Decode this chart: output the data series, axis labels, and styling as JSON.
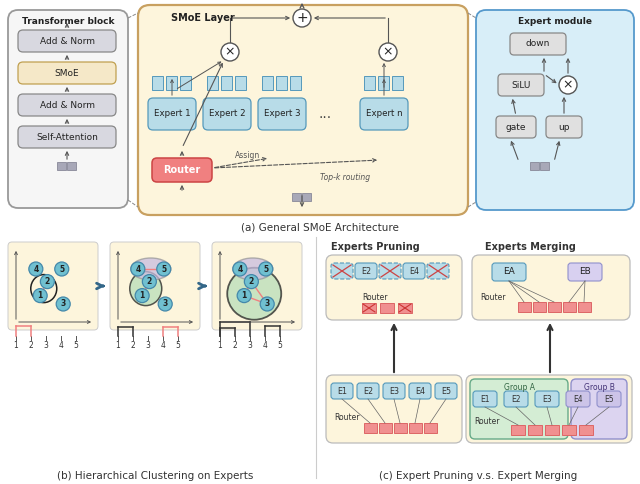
{
  "fig_width": 6.4,
  "fig_height": 4.84,
  "dpi": 100,
  "bg_color": "#ffffff",
  "caption_a": "(a) General SMoE Architecture",
  "caption_b": "(b) Hierarchical Clustering on Experts",
  "caption_c": "(c) Expert Pruning v.s. Expert Merging",
  "yellow_bg": "#fdf5dc",
  "blue_panel_bg": "#d8eef8",
  "expert_blue_fill": "#b8dce8",
  "expert_blue_edge": "#5599bb",
  "router_red": "#f08080",
  "smoe_border": "#c8a060",
  "transformer_border": "#999999",
  "em_border": "#5599cc",
  "green_cluster": "#b8ddb8",
  "purple_cluster": "#c8bce0",
  "node_blue": "#70c0d0",
  "salmon": "#f08080",
  "dark_arrow": "#555555",
  "input_gray": "#b0b0b8",
  "box_gray": "#d8d8e0",
  "smoe_yellow": "#f5e8c8"
}
